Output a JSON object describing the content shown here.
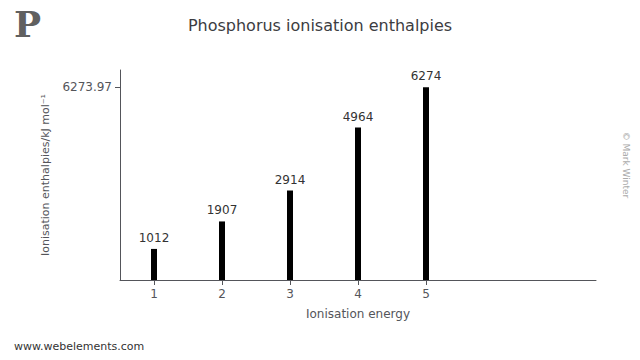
{
  "chart_data": {
    "type": "bar",
    "title": "Phosphorus ionisation enthalpies",
    "x_label": "Ionisation energy",
    "y_label": "Ionisation enthalpies/kJ mol⁻¹",
    "x": [
      1,
      2,
      3,
      4,
      5
    ],
    "values": [
      1012,
      1907,
      2914,
      4964,
      6274
    ],
    "color": "#000000",
    "xlim": [
      0.5,
      7.5
    ],
    "xticks": [
      1,
      2,
      3,
      4,
      5
    ],
    "ylim": [
      0,
      6838.6273
    ],
    "yticks": [
      6273.97
    ],
    "grid": false,
    "data_labels": true,
    "annotations": [
      "P",
      "www.webelements.com",
      "© Mark Winter"
    ]
  }
}
